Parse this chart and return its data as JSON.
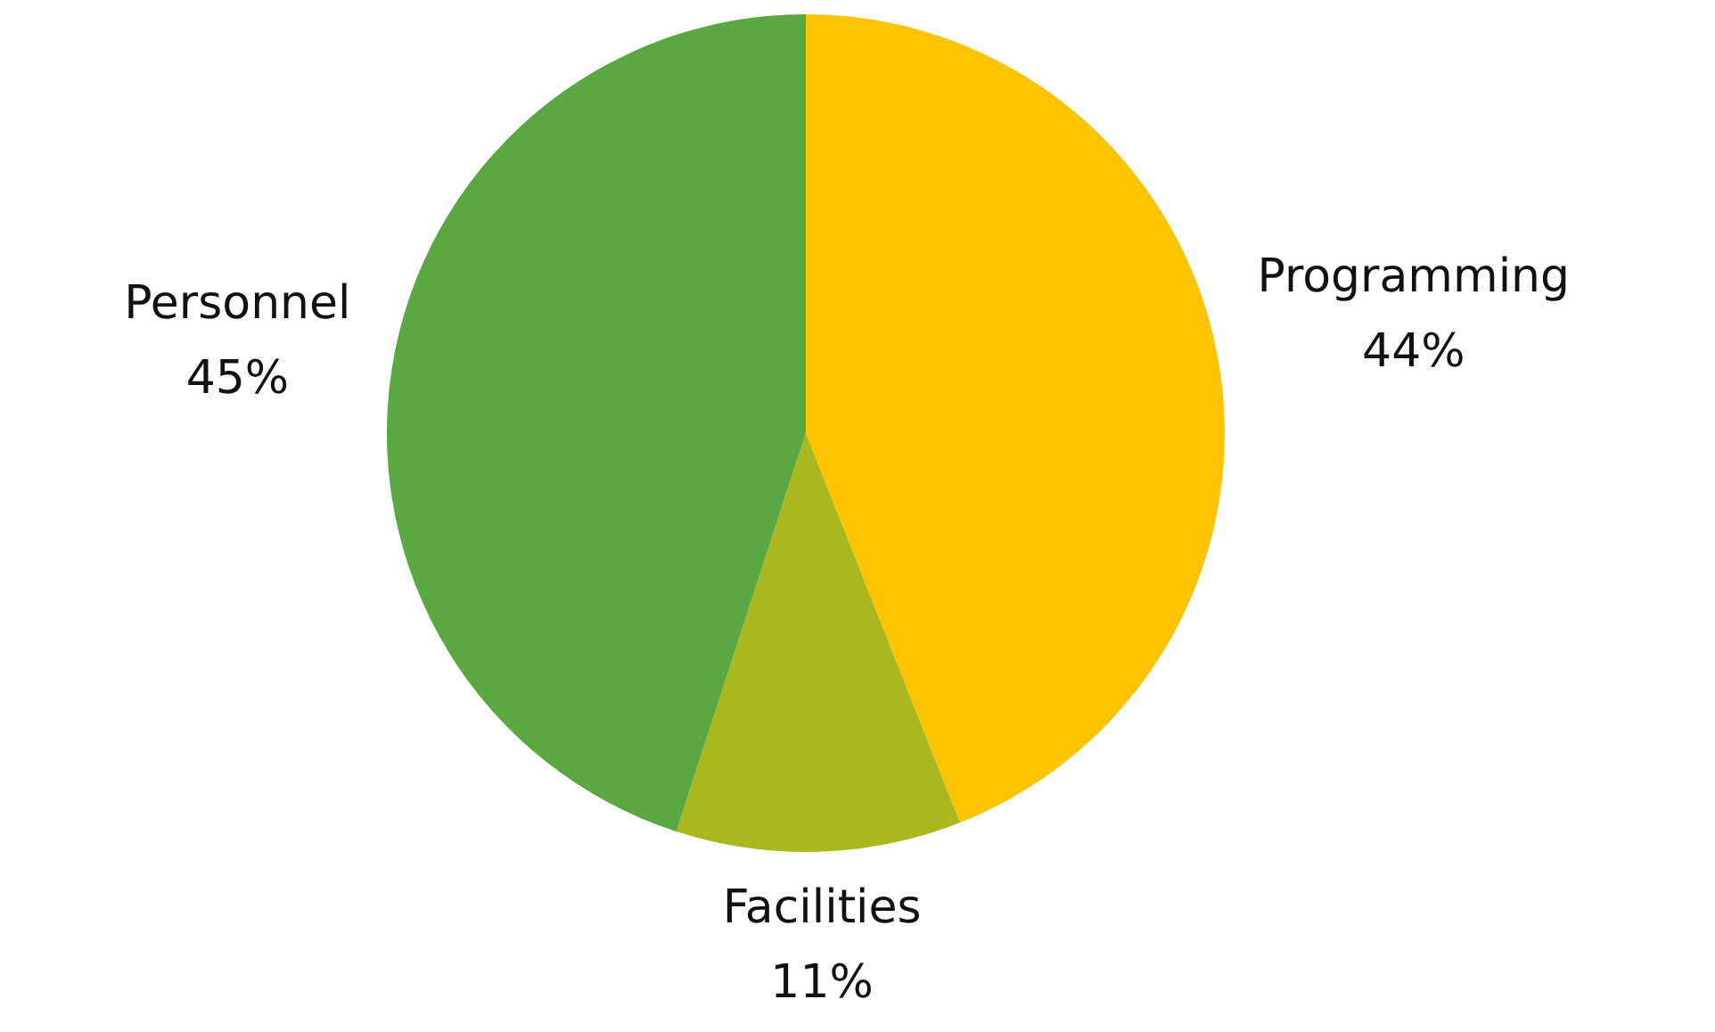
{
  "chart_data": {
    "type": "pie",
    "categories": [
      "Programming",
      "Facilities",
      "Personnel"
    ],
    "values": [
      44,
      11,
      45
    ],
    "colors": [
      "#ffc300",
      "#a8b81e",
      "#5ba843"
    ],
    "value_labels": [
      "44%",
      "11%",
      "45%"
    ],
    "legend": false
  }
}
